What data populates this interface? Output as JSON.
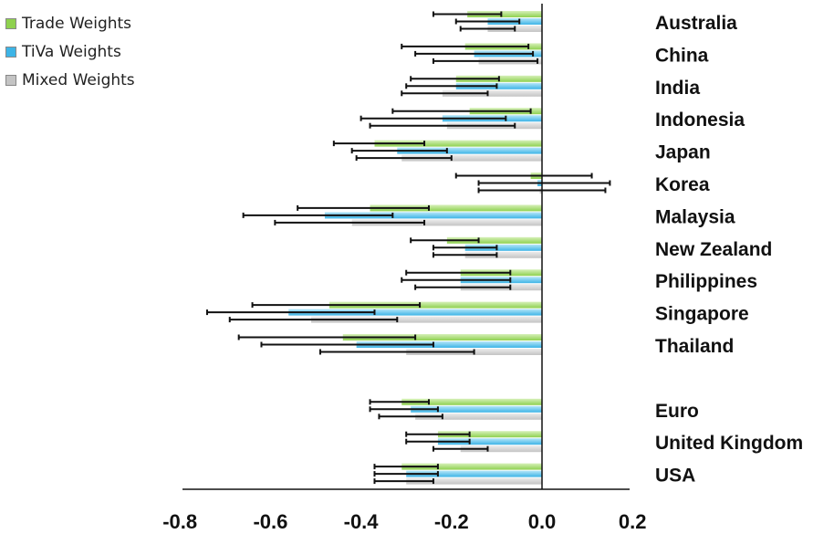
{
  "chart_data": {
    "type": "bar",
    "orientation": "horizontal",
    "title": "",
    "xlabel": "",
    "ylabel": "",
    "xlim": [
      -0.8,
      0.2
    ],
    "xticks": [
      "-0.8",
      "-0.6",
      "-0.4",
      "-0.2",
      "0.0",
      "0.2"
    ],
    "legend_position": "top-left",
    "grid": false,
    "error_bars": true,
    "categories": [
      "Australia",
      "China",
      "India",
      "Indonesia",
      "Japan",
      "Korea",
      "Malaysia",
      "New Zealand",
      "Philippines",
      "Singapore",
      "Thailand",
      "",
      "Euro",
      "United Kingdom",
      "USA"
    ],
    "series": [
      {
        "name": "Trade Weights",
        "color": "#8fd14f",
        "values": [
          -0.165,
          -0.17,
          -0.19,
          -0.16,
          -0.37,
          -0.025,
          -0.38,
          -0.21,
          -0.18,
          -0.47,
          -0.44,
          null,
          -0.31,
          -0.23,
          -0.31
        ],
        "error_low": [
          -0.24,
          -0.31,
          -0.29,
          -0.33,
          -0.46,
          -0.19,
          -0.54,
          -0.29,
          -0.3,
          -0.64,
          -0.67,
          null,
          -0.38,
          -0.3,
          -0.37
        ],
        "error_high": [
          -0.09,
          -0.03,
          -0.095,
          -0.025,
          -0.26,
          0.11,
          -0.25,
          -0.14,
          -0.07,
          -0.27,
          -0.28,
          null,
          -0.25,
          -0.16,
          -0.23
        ]
      },
      {
        "name": "TiVa Weights",
        "color": "#3db4e6",
        "values": [
          -0.12,
          -0.15,
          -0.19,
          -0.22,
          -0.32,
          -0.01,
          -0.48,
          -0.17,
          -0.18,
          -0.56,
          -0.41,
          null,
          -0.29,
          -0.23,
          -0.3
        ],
        "error_low": [
          -0.19,
          -0.28,
          -0.3,
          -0.4,
          -0.42,
          -0.14,
          -0.66,
          -0.24,
          -0.31,
          -0.74,
          -0.62,
          null,
          -0.38,
          -0.3,
          -0.37
        ],
        "error_high": [
          -0.05,
          -0.02,
          -0.1,
          -0.08,
          -0.21,
          0.15,
          -0.33,
          -0.1,
          -0.07,
          -0.37,
          -0.24,
          null,
          -0.23,
          -0.16,
          -0.23
        ]
      },
      {
        "name": "Mixed Weights",
        "color": "#c4c4c4",
        "values": [
          -0.12,
          -0.14,
          -0.22,
          -0.21,
          -0.31,
          -0.005,
          -0.42,
          -0.17,
          -0.18,
          -0.51,
          -0.3,
          null,
          -0.28,
          -0.18,
          -0.3
        ],
        "error_low": [
          -0.18,
          -0.24,
          -0.31,
          -0.38,
          -0.41,
          -0.14,
          -0.59,
          -0.24,
          -0.28,
          -0.69,
          -0.49,
          null,
          -0.36,
          -0.24,
          -0.37
        ],
        "error_high": [
          -0.06,
          -0.01,
          -0.12,
          -0.06,
          -0.2,
          0.14,
          -0.26,
          -0.1,
          -0.07,
          -0.32,
          -0.15,
          null,
          -0.22,
          -0.12,
          -0.24
        ]
      }
    ]
  }
}
